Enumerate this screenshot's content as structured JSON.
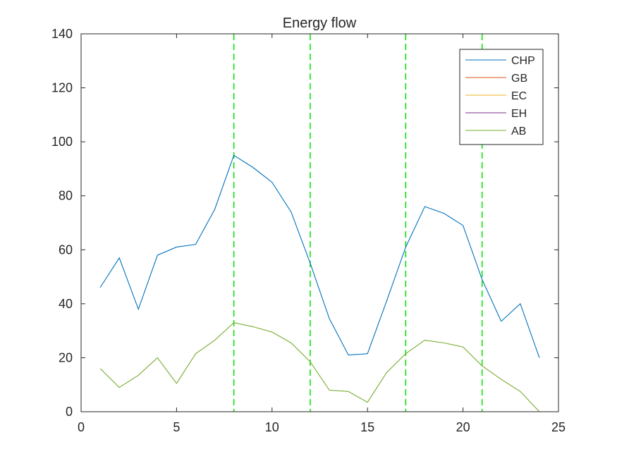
{
  "chart_data": {
    "type": "line",
    "title": "Energy flow",
    "xlabel": "",
    "ylabel": "",
    "xlim": [
      0,
      25
    ],
    "ylim": [
      0,
      140
    ],
    "xticks": [
      0,
      5,
      10,
      15,
      20,
      25
    ],
    "yticks": [
      0,
      20,
      40,
      60,
      80,
      100,
      120,
      140
    ],
    "grid": false,
    "legend_position": "top-right",
    "x": [
      1,
      2,
      3,
      4,
      5,
      6,
      7,
      8,
      9,
      10,
      11,
      12,
      13,
      14,
      15,
      16,
      17,
      18,
      19,
      20,
      21,
      22,
      23,
      24
    ],
    "series": [
      {
        "name": "CHP",
        "color": "#0072BD",
        "values": [
          46,
          57,
          38,
          58,
          61,
          62,
          75,
          95,
          90.5,
          85,
          74,
          55,
          34.5,
          21,
          21.5,
          41,
          61,
          76,
          73.5,
          69,
          49,
          33.5,
          40,
          20
        ]
      },
      {
        "name": "GB",
        "color": "#D95319",
        "values": [
          0,
          0,
          0,
          0,
          0,
          0,
          0,
          0,
          0,
          0,
          0,
          0,
          0,
          0,
          0,
          0,
          0,
          0,
          0,
          0,
          0,
          0,
          0,
          0
        ]
      },
      {
        "name": "EC",
        "color": "#EDB120",
        "values": [
          0,
          0,
          0,
          0,
          0,
          0,
          0,
          0,
          0,
          0,
          0,
          0,
          0,
          0,
          0,
          0,
          0,
          0,
          0,
          0,
          0,
          0,
          0,
          0
        ]
      },
      {
        "name": "EH",
        "color": "#7E2F8E",
        "values": [
          0,
          0,
          0,
          0,
          0,
          0,
          0,
          0,
          0,
          0,
          0,
          0,
          0,
          0,
          0,
          0,
          0,
          0,
          0,
          0,
          0,
          0,
          0,
          0
        ]
      },
      {
        "name": "AB",
        "color": "#77AC30",
        "values": [
          16,
          9,
          13.5,
          20,
          10.5,
          21.5,
          26.5,
          33,
          31.5,
          29.5,
          25.5,
          18.5,
          8,
          7.5,
          3.5,
          14.5,
          21.5,
          26.5,
          25.5,
          24,
          17,
          12,
          7.5,
          0
        ]
      }
    ],
    "vlines": {
      "x": [
        8,
        12,
        17,
        21
      ],
      "color": "#00E000",
      "style": "dashed"
    }
  }
}
